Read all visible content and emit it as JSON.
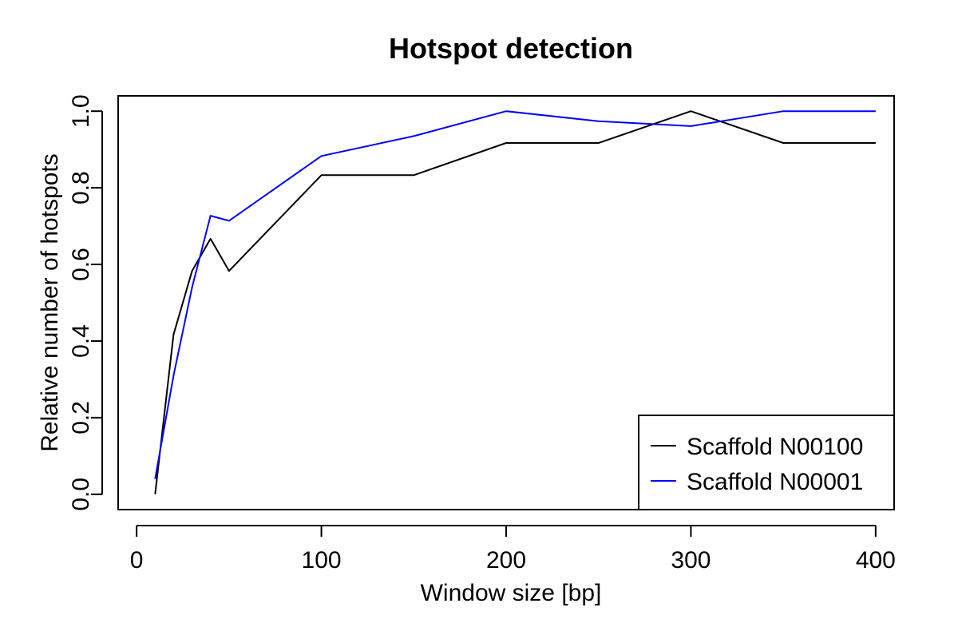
{
  "chart_data": {
    "type": "line",
    "title": "Hotspot detection",
    "xlabel": "Window size [bp]",
    "ylabel": "Relative number of hotspots",
    "xlim": [
      -10,
      410
    ],
    "ylim": [
      -0.04,
      1.04
    ],
    "x_ticks": [
      0,
      100,
      200,
      300,
      400
    ],
    "y_ticks": [
      0.0,
      0.2,
      0.4,
      0.6,
      0.8,
      1.0
    ],
    "x_tick_labels": [
      "0",
      "100",
      "200",
      "300",
      "400"
    ],
    "y_tick_labels": [
      "0.0",
      "0.2",
      "0.4",
      "0.6",
      "0.8",
      "1.0"
    ],
    "grid": false,
    "legend_position": "bottom-right",
    "series": [
      {
        "name": "Scaffold N00100",
        "color": "#000000",
        "points": [
          [
            10,
            0.0
          ],
          [
            20,
            0.417
          ],
          [
            30,
            0.583
          ],
          [
            40,
            0.667
          ],
          [
            50,
            0.583
          ],
          [
            100,
            0.833
          ],
          [
            150,
            0.833
          ],
          [
            200,
            0.917
          ],
          [
            250,
            0.917
          ],
          [
            300,
            1.0
          ],
          [
            350,
            0.917
          ],
          [
            400,
            0.917
          ]
        ]
      },
      {
        "name": "Scaffold N00001",
        "color": "#0000ff",
        "points": [
          [
            10,
            0.04
          ],
          [
            20,
            0.31
          ],
          [
            30,
            0.54
          ],
          [
            40,
            0.727
          ],
          [
            50,
            0.714
          ],
          [
            100,
            0.883
          ],
          [
            150,
            0.935
          ],
          [
            200,
            1.0
          ],
          [
            250,
            0.974
          ],
          [
            300,
            0.961
          ],
          [
            350,
            1.0
          ],
          [
            400,
            1.0
          ]
        ]
      }
    ]
  }
}
